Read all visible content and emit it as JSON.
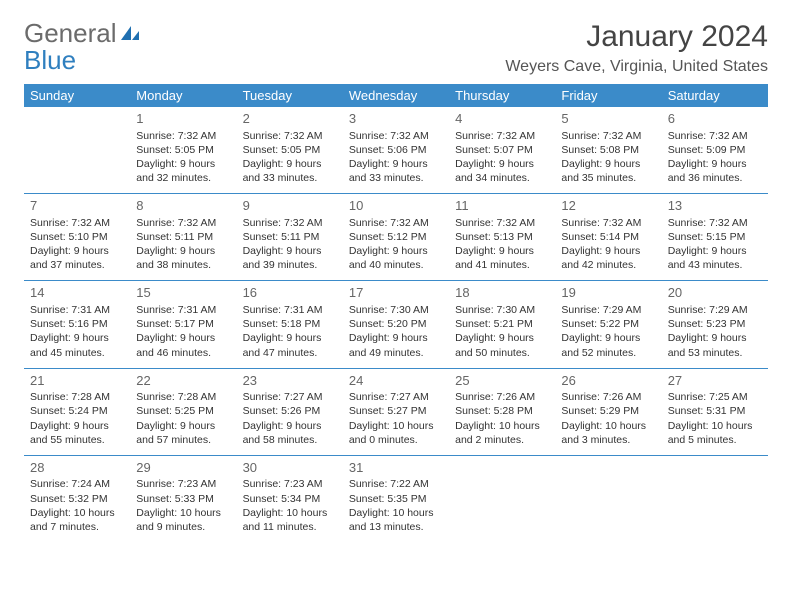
{
  "logo": {
    "general": "General",
    "blue": "Blue"
  },
  "title": "January 2024",
  "location": "Weyers Cave, Virginia, United States",
  "header_bg": "#3b8bc9",
  "header_fg": "#ffffff",
  "border_color": "#3b8bc9",
  "weekdays": [
    "Sunday",
    "Monday",
    "Tuesday",
    "Wednesday",
    "Thursday",
    "Friday",
    "Saturday"
  ],
  "first_weekday_index": 1,
  "days": [
    {
      "n": 1,
      "sunrise": "7:32 AM",
      "sunset": "5:05 PM",
      "daylight": "9 hours and 32 minutes."
    },
    {
      "n": 2,
      "sunrise": "7:32 AM",
      "sunset": "5:05 PM",
      "daylight": "9 hours and 33 minutes."
    },
    {
      "n": 3,
      "sunrise": "7:32 AM",
      "sunset": "5:06 PM",
      "daylight": "9 hours and 33 minutes."
    },
    {
      "n": 4,
      "sunrise": "7:32 AM",
      "sunset": "5:07 PM",
      "daylight": "9 hours and 34 minutes."
    },
    {
      "n": 5,
      "sunrise": "7:32 AM",
      "sunset": "5:08 PM",
      "daylight": "9 hours and 35 minutes."
    },
    {
      "n": 6,
      "sunrise": "7:32 AM",
      "sunset": "5:09 PM",
      "daylight": "9 hours and 36 minutes."
    },
    {
      "n": 7,
      "sunrise": "7:32 AM",
      "sunset": "5:10 PM",
      "daylight": "9 hours and 37 minutes."
    },
    {
      "n": 8,
      "sunrise": "7:32 AM",
      "sunset": "5:11 PM",
      "daylight": "9 hours and 38 minutes."
    },
    {
      "n": 9,
      "sunrise": "7:32 AM",
      "sunset": "5:11 PM",
      "daylight": "9 hours and 39 minutes."
    },
    {
      "n": 10,
      "sunrise": "7:32 AM",
      "sunset": "5:12 PM",
      "daylight": "9 hours and 40 minutes."
    },
    {
      "n": 11,
      "sunrise": "7:32 AM",
      "sunset": "5:13 PM",
      "daylight": "9 hours and 41 minutes."
    },
    {
      "n": 12,
      "sunrise": "7:32 AM",
      "sunset": "5:14 PM",
      "daylight": "9 hours and 42 minutes."
    },
    {
      "n": 13,
      "sunrise": "7:32 AM",
      "sunset": "5:15 PM",
      "daylight": "9 hours and 43 minutes."
    },
    {
      "n": 14,
      "sunrise": "7:31 AM",
      "sunset": "5:16 PM",
      "daylight": "9 hours and 45 minutes."
    },
    {
      "n": 15,
      "sunrise": "7:31 AM",
      "sunset": "5:17 PM",
      "daylight": "9 hours and 46 minutes."
    },
    {
      "n": 16,
      "sunrise": "7:31 AM",
      "sunset": "5:18 PM",
      "daylight": "9 hours and 47 minutes."
    },
    {
      "n": 17,
      "sunrise": "7:30 AM",
      "sunset": "5:20 PM",
      "daylight": "9 hours and 49 minutes."
    },
    {
      "n": 18,
      "sunrise": "7:30 AM",
      "sunset": "5:21 PM",
      "daylight": "9 hours and 50 minutes."
    },
    {
      "n": 19,
      "sunrise": "7:29 AM",
      "sunset": "5:22 PM",
      "daylight": "9 hours and 52 minutes."
    },
    {
      "n": 20,
      "sunrise": "7:29 AM",
      "sunset": "5:23 PM",
      "daylight": "9 hours and 53 minutes."
    },
    {
      "n": 21,
      "sunrise": "7:28 AM",
      "sunset": "5:24 PM",
      "daylight": "9 hours and 55 minutes."
    },
    {
      "n": 22,
      "sunrise": "7:28 AM",
      "sunset": "5:25 PM",
      "daylight": "9 hours and 57 minutes."
    },
    {
      "n": 23,
      "sunrise": "7:27 AM",
      "sunset": "5:26 PM",
      "daylight": "9 hours and 58 minutes."
    },
    {
      "n": 24,
      "sunrise": "7:27 AM",
      "sunset": "5:27 PM",
      "daylight": "10 hours and 0 minutes."
    },
    {
      "n": 25,
      "sunrise": "7:26 AM",
      "sunset": "5:28 PM",
      "daylight": "10 hours and 2 minutes."
    },
    {
      "n": 26,
      "sunrise": "7:26 AM",
      "sunset": "5:29 PM",
      "daylight": "10 hours and 3 minutes."
    },
    {
      "n": 27,
      "sunrise": "7:25 AM",
      "sunset": "5:31 PM",
      "daylight": "10 hours and 5 minutes."
    },
    {
      "n": 28,
      "sunrise": "7:24 AM",
      "sunset": "5:32 PM",
      "daylight": "10 hours and 7 minutes."
    },
    {
      "n": 29,
      "sunrise": "7:23 AM",
      "sunset": "5:33 PM",
      "daylight": "10 hours and 9 minutes."
    },
    {
      "n": 30,
      "sunrise": "7:23 AM",
      "sunset": "5:34 PM",
      "daylight": "10 hours and 11 minutes."
    },
    {
      "n": 31,
      "sunrise": "7:22 AM",
      "sunset": "5:35 PM",
      "daylight": "10 hours and 13 minutes."
    }
  ],
  "labels": {
    "sunrise": "Sunrise:",
    "sunset": "Sunset:",
    "daylight": "Daylight:"
  }
}
